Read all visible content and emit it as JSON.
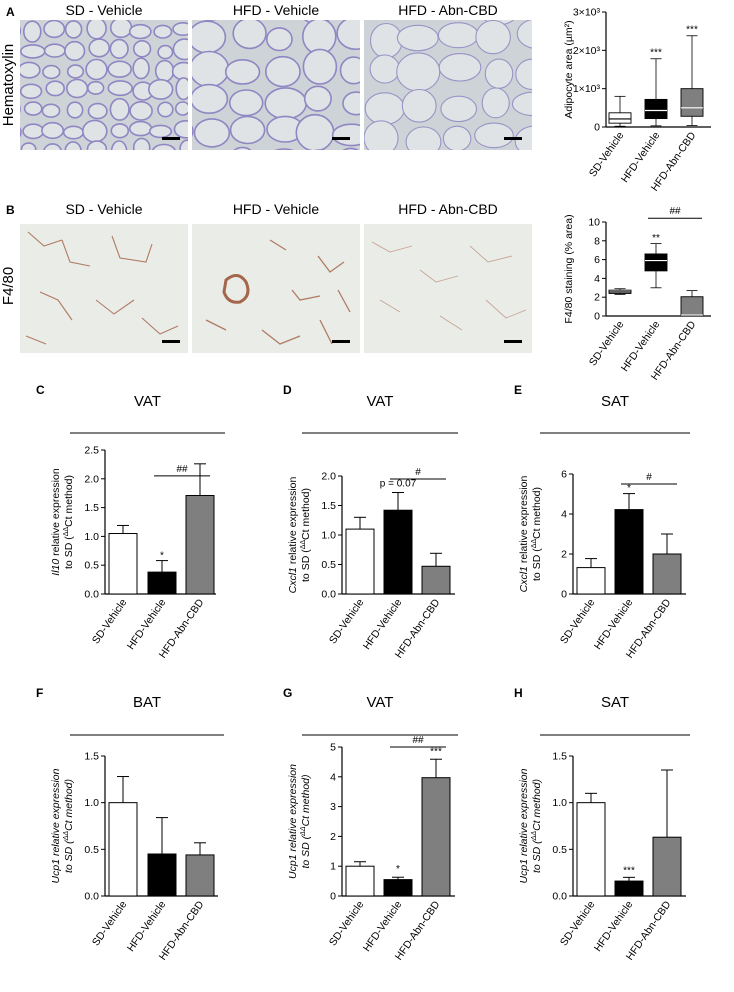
{
  "panels": {
    "A": {
      "label": "A",
      "stain": "Hematoxylin",
      "images": [
        "SD - Vehicle",
        "HFD - Vehicle",
        "HFD - Abn-CBD"
      ]
    },
    "B": {
      "label": "B",
      "stain": "F4/80",
      "images": [
        "SD - Vehicle",
        "HFD - Vehicle",
        "HFD - Abn-CBD"
      ]
    }
  },
  "colors": {
    "white_bar": "#ffffff",
    "black_bar": "#000000",
    "gray_bar": "#7f7f7f",
    "he_background": "#cdd3d6",
    "he_membrane": "#8f86c3",
    "f480_background": "#eaece8",
    "f480_stain": "#b07b63"
  },
  "chart_data": [
    {
      "id": "A",
      "type": "box",
      "categories": [
        "SD-Vehicle",
        "HFD-Vehicle",
        "HFD-Abn-CBD"
      ],
      "ylabel": "Adipocyte area (µm²)",
      "yticks": [
        "0",
        "1×10³",
        "2×10³",
        "3×10³"
      ],
      "ylim": [
        0,
        3000
      ],
      "boxes": [
        {
          "min": 20,
          "q1": 100,
          "median": 210,
          "q3": 370,
          "max": 800,
          "fill": "#ffffff"
        },
        {
          "min": 30,
          "q1": 220,
          "median": 430,
          "q3": 720,
          "max": 1780,
          "fill": "#000000"
        },
        {
          "min": 40,
          "q1": 280,
          "median": 500,
          "q3": 1000,
          "max": 2380,
          "fill": "#7f7f7f"
        }
      ],
      "annotations": [
        {
          "text": "***",
          "category": 1,
          "y": 1860
        },
        {
          "text": "***",
          "category": 2,
          "y": 2470
        }
      ]
    },
    {
      "id": "B",
      "type": "box",
      "categories": [
        "SD-Vehicle",
        "HFD-Vehicle",
        "HFD-Abn-CBD"
      ],
      "ylabel": "F4/80 staining (% area)",
      "yticks": [
        "0",
        "2",
        "4",
        "6",
        "8",
        "10"
      ],
      "ylim": [
        0,
        10
      ],
      "boxes": [
        {
          "min": 2.3,
          "q1": 2.4,
          "median": 2.55,
          "q3": 2.75,
          "max": 2.9,
          "fill": "#ffffff"
        },
        {
          "min": 3.0,
          "q1": 4.8,
          "median": 5.9,
          "q3": 6.6,
          "max": 7.7,
          "fill": "#000000"
        },
        {
          "min": 0.0,
          "q1": 0.05,
          "median": 0.1,
          "q3": 2.05,
          "max": 2.7,
          "fill": "#7f7f7f"
        }
      ],
      "annotations": [
        {
          "text": "**",
          "category": 1,
          "y": 8.0
        }
      ],
      "bracket": {
        "from": 1,
        "to": 2,
        "y": 10.4,
        "text": "##"
      }
    },
    {
      "id": "C",
      "type": "bar",
      "title": "VAT",
      "categories": [
        "SD-Vehicle",
        "HFD-Vehicle",
        "HFD-Abn-CBD"
      ],
      "ylabel_italic": "Il10",
      "ylabel": " relative expression",
      "ylabel2": "to SD (",
      "ylabel2_sup": "ΔΔ",
      "ylabel2_end": "Ct method)",
      "values": [
        1.05,
        0.38,
        1.71
      ],
      "errors": [
        0.14,
        0.2,
        0.55
      ],
      "yticks": [
        "0.0",
        "0.5",
        "1.0",
        "1.5",
        "2.0",
        "2.5"
      ],
      "ylim": [
        0,
        2.5
      ],
      "annotations": [
        {
          "text": "*",
          "category": 1,
          "y": 0.62
        }
      ],
      "bracket": {
        "from": 1,
        "to": 2,
        "y": 2.05,
        "text": "##"
      }
    },
    {
      "id": "D",
      "type": "bar",
      "title": "VAT",
      "categories": [
        "SD-Vehicle",
        "HFD-Vehicle",
        "HFD-Abn-CBD"
      ],
      "ylabel_italic": "Cxcl1",
      "ylabel": " relative expression",
      "ylabel2": "to SD (",
      "ylabel2_sup": "ΔΔ",
      "ylabel2_end": "Ct method)",
      "values": [
        1.1,
        1.42,
        0.47
      ],
      "errors": [
        0.2,
        0.3,
        0.22
      ],
      "yticks": [
        "0.0",
        "0.5",
        "1.0",
        "1.5",
        "2.0"
      ],
      "ylim": [
        0,
        2.0
      ],
      "annotations": [
        {
          "text": "p = 0.07",
          "category": 1,
          "y": 1.82
        }
      ],
      "bracket": {
        "from": 1,
        "to": 2,
        "y": 1.95,
        "text": "#"
      }
    },
    {
      "id": "E",
      "type": "bar",
      "title": "SAT",
      "categories": [
        "SD-Vehicle",
        "HFD-Vehicle",
        "HFD-Abn-CBD"
      ],
      "ylabel_italic": "Cxcl1",
      "ylabel": " relative expression",
      "ylabel2": "to SD (",
      "ylabel2_sup": "ΔΔ",
      "ylabel2_end": "Ct method)",
      "values": [
        1.32,
        4.22,
        2.0
      ],
      "errors": [
        0.45,
        0.8,
        1.0
      ],
      "yticks": [
        "0",
        "2",
        "4",
        "6"
      ],
      "ylim": [
        0,
        6
      ],
      "annotations": [
        {
          "text": "*",
          "category": 1,
          "y": 5.15
        }
      ],
      "bracket": {
        "from": 1,
        "to": 2,
        "y": 5.5,
        "text": "#"
      }
    },
    {
      "id": "F",
      "type": "bar",
      "title": "BAT",
      "categories": [
        "SD-Vehicle",
        "HFD-Vehicle",
        "HFD-Abn-CBD"
      ],
      "ylabel_italic": "Ucp1",
      "ylabel": " relative expression",
      "ylabel2": "to SD (",
      "ylabel2_sup": "ΔΔ",
      "ylabel2_end": "Ct method)",
      "italic_all": true,
      "values": [
        1.0,
        0.45,
        0.44
      ],
      "errors": [
        0.28,
        0.39,
        0.13
      ],
      "yticks": [
        "0.0",
        "0.5",
        "1.0",
        "1.5"
      ],
      "ylim": [
        0,
        1.5
      ],
      "annotations": []
    },
    {
      "id": "G",
      "type": "bar",
      "title": "VAT",
      "categories": [
        "SD-Vehicle",
        "HFD-Vehicle",
        "HFD-Abn-CBD"
      ],
      "ylabel_italic": "Ucp1",
      "ylabel": " relative expression",
      "ylabel2": "to SD (",
      "ylabel2_sup": "ΔΔ",
      "ylabel2_end": "Ct method)",
      "italic_all": true,
      "values": [
        1.0,
        0.55,
        3.97
      ],
      "errors": [
        0.15,
        0.08,
        0.62
      ],
      "yticks": [
        "0",
        "1",
        "2",
        "3",
        "4",
        "5"
      ],
      "ylim": [
        0,
        5
      ],
      "annotations": [
        {
          "text": "*",
          "category": 1,
          "y": 0.8
        },
        {
          "text": "***",
          "category": 2,
          "y": 4.75
        }
      ],
      "bracket": {
        "from": 1,
        "to": 2,
        "y": 5.0,
        "text": "##"
      }
    },
    {
      "id": "H",
      "type": "bar",
      "title": "SAT",
      "categories": [
        "SD-Vehicle",
        "HFD-Vehicle",
        "HFD-Abn-CBD"
      ],
      "ylabel_italic": "Ucp1",
      "ylabel": " relative expression",
      "ylabel2": "to SD (",
      "ylabel2_sup": "ΔΔ",
      "ylabel2_end": "Ct method)",
      "italic_all": true,
      "values": [
        1.0,
        0.16,
        0.63
      ],
      "errors": [
        0.1,
        0.04,
        0.72
      ],
      "yticks": [
        "0.0",
        "0.5",
        "1.0",
        "1.5"
      ],
      "ylim": [
        0,
        1.5
      ],
      "annotations": [
        {
          "text": "***",
          "category": 1,
          "y": 0.24
        }
      ]
    }
  ]
}
